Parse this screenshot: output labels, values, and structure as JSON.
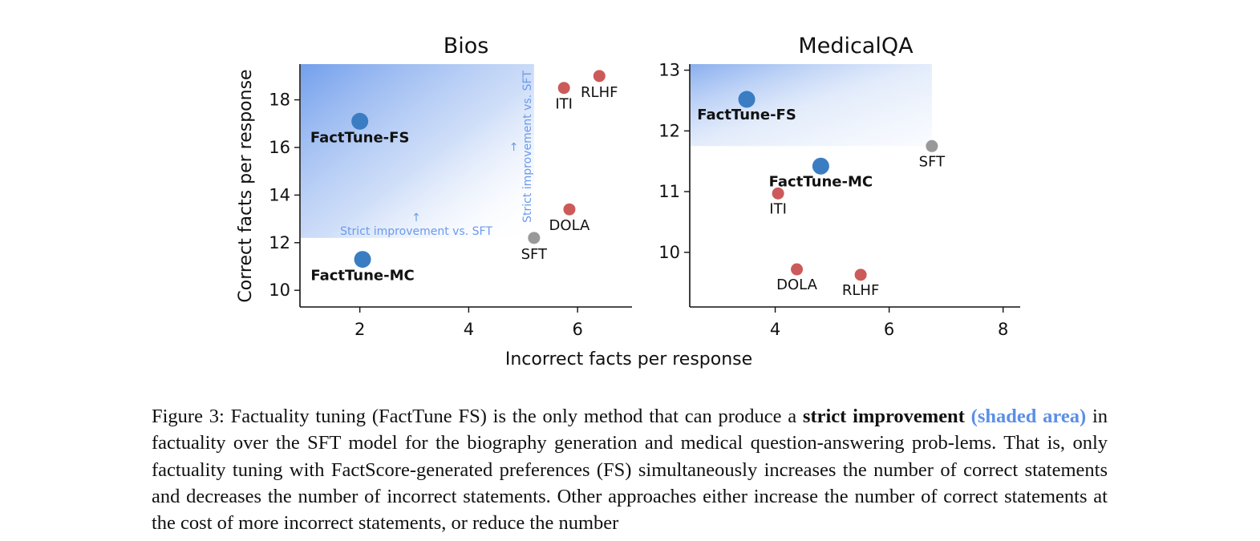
{
  "colors": {
    "factune": "#3a7dc2",
    "baseline": "#cc5a5a",
    "sft": "#999999",
    "shade": "#6b9aeb",
    "annotation": "#6b9aeb"
  },
  "shared_xlabel": "Incorrect facts per response",
  "shared_ylabel": "Correct facts per response",
  "chart_data": [
    {
      "type": "scatter",
      "title": "Bios",
      "xlabel": "Incorrect facts per response",
      "ylabel": "Correct facts per response",
      "xlim": [
        0.9,
        7.0
      ],
      "ylim": [
        9.3,
        19.5
      ],
      "xticks": [
        2,
        4,
        6
      ],
      "yticks": [
        10,
        12,
        14,
        16,
        18
      ],
      "shaded_region": {
        "x": [
          0.9,
          5.2
        ],
        "y": [
          12.2,
          19.5
        ]
      },
      "annotations": [
        "Strict improvement vs. SFT",
        "Strict improvement vs. SFT"
      ],
      "points": [
        {
          "label": "FactTune-FS",
          "x": 2.0,
          "y": 17.1,
          "group": "factune"
        },
        {
          "label": "FactTune-MC",
          "x": 2.05,
          "y": 11.3,
          "group": "factune"
        },
        {
          "label": "ITI",
          "x": 5.75,
          "y": 18.5,
          "group": "baseline"
        },
        {
          "label": "RLHF",
          "x": 6.4,
          "y": 19.0,
          "group": "baseline"
        },
        {
          "label": "DOLA",
          "x": 5.85,
          "y": 13.4,
          "group": "baseline"
        },
        {
          "label": "SFT",
          "x": 5.2,
          "y": 12.2,
          "group": "sft"
        }
      ]
    },
    {
      "type": "scatter",
      "title": "MedicalQA",
      "xlabel": "Incorrect facts per response",
      "ylabel": "",
      "xlim": [
        2.5,
        8.3
      ],
      "ylim": [
        9.1,
        13.1
      ],
      "xticks": [
        4,
        6,
        8
      ],
      "yticks": [
        10,
        11,
        12,
        13
      ],
      "shaded_region": {
        "x": [
          2.5,
          6.75
        ],
        "y": [
          11.75,
          13.1
        ]
      },
      "annotations": [],
      "points": [
        {
          "label": "FactTune-FS",
          "x": 3.5,
          "y": 12.52,
          "group": "factune"
        },
        {
          "label": "FactTune-MC",
          "x": 4.8,
          "y": 11.42,
          "group": "factune"
        },
        {
          "label": "ITI",
          "x": 4.05,
          "y": 10.97,
          "group": "baseline"
        },
        {
          "label": "DOLA",
          "x": 4.38,
          "y": 9.72,
          "group": "baseline"
        },
        {
          "label": "RLHF",
          "x": 5.5,
          "y": 9.63,
          "group": "baseline"
        },
        {
          "label": "SFT",
          "x": 6.75,
          "y": 11.75,
          "group": "sft"
        }
      ]
    }
  ],
  "caption": {
    "prefix": "Figure 3: Factuality tuning (FactTune FS) is the only method that can produce a ",
    "bold": "strict improvement",
    "highlight": "(shaded area)",
    "rest": " in factuality over the SFT model for the biography generation and medical question-answering prob-lems. That is, only factuality tuning with FactScore-generated preferences (FS) simultaneously increases the number of correct statements and decreases the number of incorrect statements. Other approaches either increase the number of correct statements at the cost of more incorrect statements, or reduce the number"
  }
}
